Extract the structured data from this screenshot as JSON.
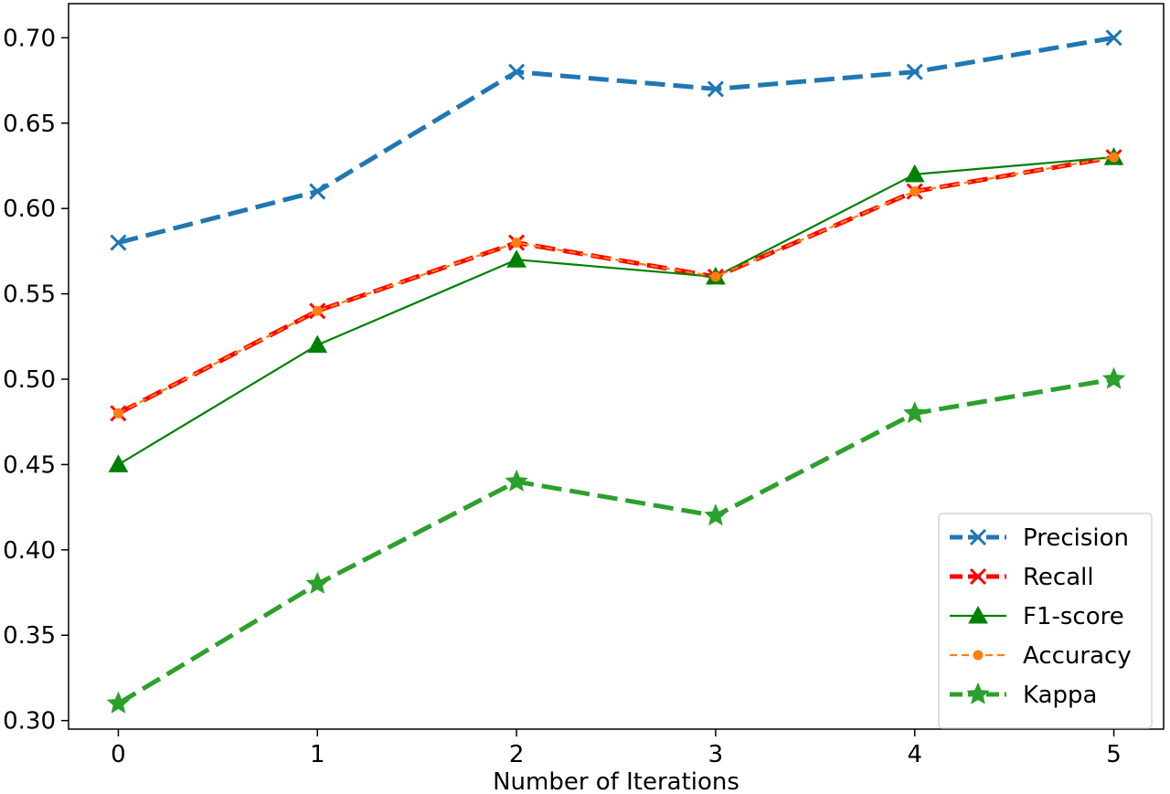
{
  "chart_data": {
    "type": "line",
    "title": "",
    "xlabel": "Number of Iterations",
    "ylabel": "",
    "x": [
      0,
      1,
      2,
      3,
      4,
      5
    ],
    "xticks": [
      "0",
      "1",
      "2",
      "3",
      "4",
      "5"
    ],
    "yticks": [
      "0.30",
      "0.35",
      "0.40",
      "0.45",
      "0.50",
      "0.55",
      "0.60",
      "0.65",
      "0.70"
    ],
    "ylim": [
      0.295,
      0.72
    ],
    "xlim": [
      -0.25,
      5.25
    ],
    "grid": false,
    "legend_position": "lower-right",
    "series": [
      {
        "name": "Precision",
        "values": [
          0.58,
          0.61,
          0.68,
          0.67,
          0.68,
          0.7
        ],
        "color": "#1f77b4",
        "line": "dashed-thick",
        "marker": "x"
      },
      {
        "name": "Recall",
        "values": [
          0.48,
          0.54,
          0.58,
          0.56,
          0.61,
          0.63
        ],
        "color": "#ff0000",
        "line": "dashed-thick",
        "marker": "x"
      },
      {
        "name": "F1-score",
        "values": [
          0.45,
          0.52,
          0.57,
          0.56,
          0.62,
          0.63
        ],
        "color": "#008000",
        "line": "solid",
        "marker": "triangle"
      },
      {
        "name": "Accuracy",
        "values": [
          0.48,
          0.54,
          0.58,
          0.56,
          0.61,
          0.63
        ],
        "color": "#ff7f0e",
        "line": "dashed-thin",
        "marker": "circle"
      },
      {
        "name": "Kappa",
        "values": [
          0.31,
          0.38,
          0.44,
          0.42,
          0.48,
          0.5
        ],
        "color": "#2ca02c",
        "line": "dashed-thick",
        "marker": "star"
      }
    ]
  }
}
